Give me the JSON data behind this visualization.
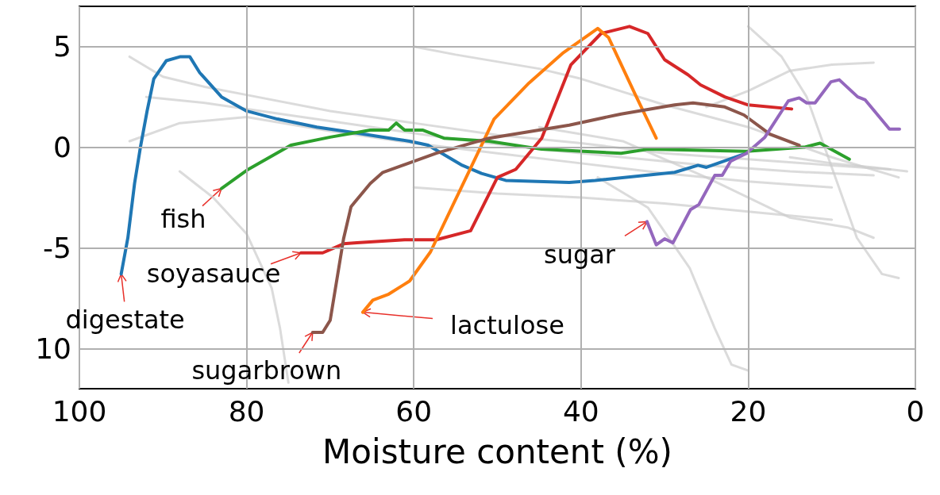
{
  "chart_data": {
    "type": "line",
    "xlabel": "Moisture content (%)",
    "xlim": [
      100,
      0
    ],
    "xticks": [
      100,
      80,
      60,
      40,
      20,
      0
    ],
    "ylim": [
      -12,
      7
    ],
    "yticks": [
      {
        "value": -10,
        "label": "10"
      },
      -5,
      0,
      5
    ],
    "grid": true,
    "marker": "none",
    "line_style": "solid",
    "series": [
      {
        "color": "#cccccc",
        "x": [
          94,
          90,
          85,
          80,
          70,
          60,
          50,
          40,
          30,
          20,
          10,
          3
        ],
        "values": [
          4.5,
          3.5,
          3.0,
          2.6,
          1.8,
          1.2,
          0.6,
          0.2,
          -0.3,
          -0.6,
          -0.9,
          -1.1
        ]
      },
      {
        "color": "#cccccc",
        "x": [
          92,
          85,
          75,
          65,
          55,
          45,
          35,
          25,
          15,
          5
        ],
        "values": [
          2.5,
          2.2,
          1.6,
          1.0,
          0.4,
          -0.1,
          -0.5,
          -0.9,
          -1.2,
          -1.4
        ]
      },
      {
        "color": "#cccccc",
        "x": [
          94,
          88,
          80,
          70,
          60,
          50,
          40,
          30,
          20,
          10
        ],
        "values": [
          0.3,
          1.2,
          1.5,
          0.8,
          0.2,
          -0.3,
          -0.8,
          -1.3,
          -1.7,
          -2.0
        ]
      },
      {
        "color": "#cccccc",
        "x": [
          60,
          55,
          45,
          40,
          30,
          20,
          10,
          2
        ],
        "values": [
          5.0,
          4.6,
          3.9,
          3.4,
          2.1,
          1.0,
          -0.5,
          -1.5
        ]
      },
      {
        "color": "#cccccc",
        "x": [
          88,
          84,
          80,
          77,
          76,
          75
        ],
        "values": [
          -1.2,
          -2.5,
          -4.3,
          -7.0,
          -9.0,
          -11.7
        ]
      },
      {
        "color": "#cccccc",
        "x": [
          38,
          32,
          27,
          24,
          22,
          20
        ],
        "values": [
          -1.5,
          -3.0,
          -6.0,
          -9.0,
          -10.8,
          -11.1
        ]
      },
      {
        "color": "#cccccc",
        "x": [
          20,
          16,
          13,
          10,
          7,
          4,
          2
        ],
        "values": [
          6.0,
          4.5,
          2.5,
          -1.0,
          -4.5,
          -6.3,
          -6.5
        ]
      },
      {
        "color": "#cccccc",
        "x": [
          45,
          35,
          25,
          15,
          8,
          5
        ],
        "values": [
          1.0,
          0.3,
          -1.5,
          -3.5,
          -4.0,
          -4.5
        ]
      },
      {
        "color": "#cccccc",
        "x": [
          25,
          20,
          15,
          10,
          5
        ],
        "values": [
          2.0,
          2.8,
          3.8,
          4.1,
          4.2
        ]
      },
      {
        "color": "#cccccc",
        "x": [
          60,
          50,
          40,
          30,
          20,
          10
        ],
        "values": [
          -2.0,
          -2.3,
          -2.5,
          -2.8,
          -3.2,
          -3.6
        ]
      },
      {
        "color": "#cccccc",
        "x": [
          15,
          10,
          5,
          1
        ],
        "values": [
          -0.5,
          -0.8,
          -1.0,
          -1.2
        ]
      },
      {
        "color": "#1f77b4",
        "x": [
          95,
          94.2,
          93.4,
          92.7,
          91.9,
          91.1,
          89.6,
          87.9,
          86.8,
          85.6,
          83,
          80,
          76.3,
          71.6,
          66.8,
          62.1,
          60.5,
          58.3,
          54.2,
          51.9,
          49,
          41.4,
          38.3,
          28.8,
          26,
          25,
          20.2
        ],
        "values": [
          -6.3,
          -4.5,
          -1.8,
          0,
          1.8,
          3.4,
          4.3,
          4.5,
          4.5,
          3.7,
          2.5,
          1.8,
          1.4,
          1.0,
          0.7,
          0.4,
          0.3,
          0.1,
          -0.9,
          -1.3,
          -1.65,
          -1.75,
          -1.65,
          -1.25,
          -0.9,
          -1.0,
          -0.3
        ]
      },
      {
        "color": "#2ca02c",
        "x": [
          83,
          79.8,
          74.7,
          70,
          65.2,
          63,
          62.1,
          61.1,
          58.9,
          56.4,
          51,
          44.7,
          35.2,
          32,
          20.2,
          13.3,
          11.4,
          7.9
        ],
        "values": [
          -2.05,
          -1.1,
          0.1,
          0.5,
          0.85,
          0.85,
          1.2,
          0.85,
          0.85,
          0.45,
          0.3,
          -0.1,
          -0.3,
          -0.1,
          -0.2,
          0,
          0.2,
          -0.6
        ]
      },
      {
        "color": "#d62728",
        "x": [
          73.5,
          70.9,
          68.4,
          66.8,
          61.1,
          57.3,
          53.2,
          50,
          47.8,
          44.7,
          41.2,
          37.6,
          34.2,
          32,
          30,
          27.2,
          25.7,
          22.8,
          20,
          14.8
        ],
        "values": [
          -5.25,
          -5.25,
          -4.8,
          -4.75,
          -4.6,
          -4.6,
          -4.15,
          -1.5,
          -1.1,
          0.45,
          4.1,
          5.65,
          6.0,
          5.65,
          4.35,
          3.6,
          3.1,
          2.5,
          2.1,
          1.9
        ]
      },
      {
        "color": "#ff7f0e",
        "x": [
          66.1,
          64.9,
          63,
          60.5,
          58,
          54.2,
          50.4,
          46.2,
          42.1,
          38,
          36.7,
          33.6,
          31
        ],
        "values": [
          -8.2,
          -7.6,
          -7.3,
          -6.65,
          -5.2,
          -1.9,
          1.4,
          3.2,
          4.7,
          5.9,
          5.45,
          2.7,
          0.45
        ]
      },
      {
        "color": "#8c564b",
        "x": [
          72.1,
          70.9,
          70,
          68.4,
          67.5,
          65.2,
          63.7,
          57.3,
          51,
          41.4,
          35.2,
          28.8,
          26.6,
          22.8,
          20.5,
          17.4,
          13.9
        ],
        "values": [
          -9.2,
          -9.2,
          -8.6,
          -4.55,
          -2.95,
          -1.8,
          -1.25,
          -0.3,
          0.45,
          1.1,
          1.65,
          2.1,
          2.2,
          2.0,
          1.6,
          0.65,
          0.1
        ]
      },
      {
        "color": "#9467bd",
        "x": [
          32.1,
          31,
          30,
          29,
          26.9,
          25.9,
          24,
          23.1,
          22.1,
          20.2,
          18,
          15.2,
          13.9,
          13,
          12,
          10.1,
          9.1,
          6.9,
          6,
          3.1,
          1.9
        ],
        "values": [
          -3.7,
          -4.85,
          -4.55,
          -4.75,
          -3.1,
          -2.85,
          -1.4,
          -1.4,
          -0.7,
          -0.3,
          0.5,
          2.3,
          2.45,
          2.2,
          2.2,
          3.25,
          3.35,
          2.5,
          2.35,
          0.9,
          0.9
        ]
      }
    ],
    "annotations": [
      {
        "text": "fish",
        "x": 83,
        "y": -2.05
      },
      {
        "text": "soyasauce",
        "x": 73.5,
        "y": -5.25
      },
      {
        "text": "digestate",
        "x": 95,
        "y": -6.3
      },
      {
        "text": "sugarbrown",
        "x": 72.1,
        "y": -9.2
      },
      {
        "text": "lactulose",
        "x": 66.1,
        "y": -8.2
      },
      {
        "text": "sugar",
        "x": 32.1,
        "y": -3.7
      }
    ]
  }
}
